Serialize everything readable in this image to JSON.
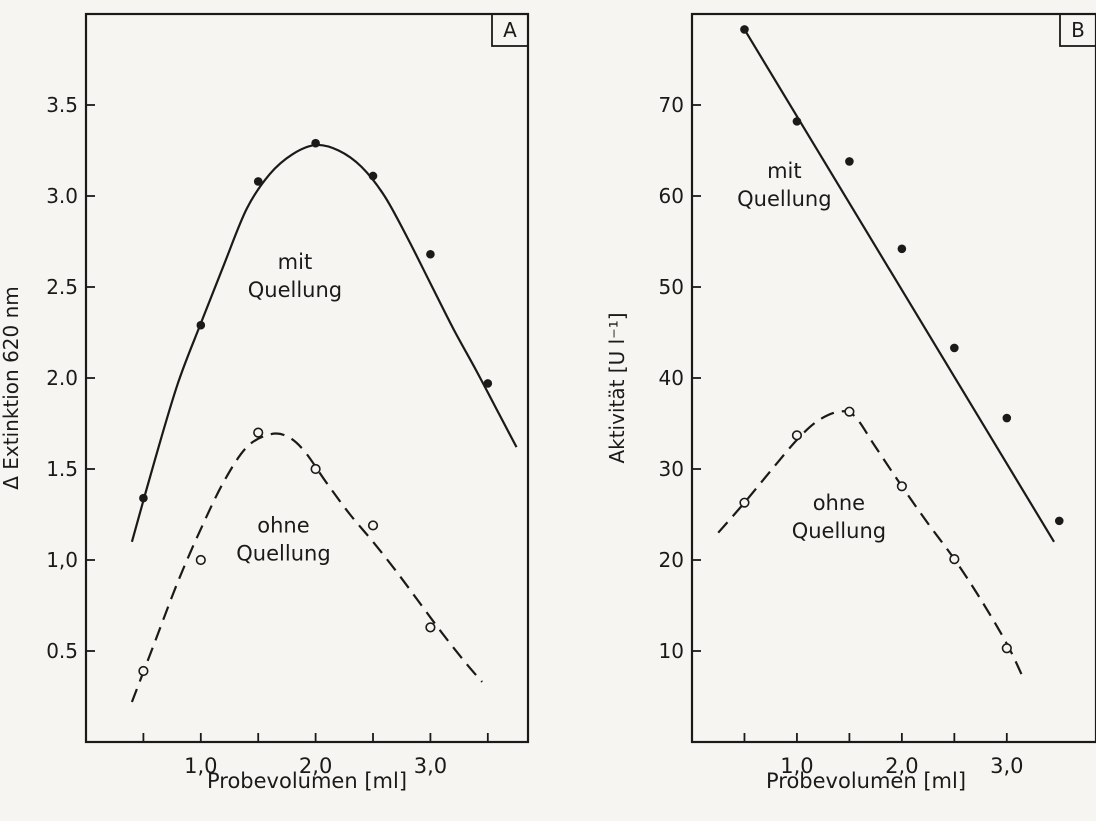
{
  "chart_data": [
    {
      "type": "scatter",
      "panel_label": "A",
      "xlabel": "Probevolumen  [ml]",
      "ylabel": "Δ Extinktion  620 nm",
      "xlim": [
        0.0,
        3.85
      ],
      "ylim": [
        0.0,
        4.0
      ],
      "x_ticks": [
        0.5,
        1.0,
        1.5,
        2.0,
        2.5,
        3.0,
        3.5
      ],
      "x_tick_labels": [
        "",
        "1,0",
        "",
        "2,0",
        "",
        "3,0",
        ""
      ],
      "y_ticks": [
        0.5,
        1.0,
        1.5,
        2.0,
        2.5,
        3.0,
        3.5
      ],
      "y_tick_labels": [
        "0.5",
        "1,0",
        "1.5",
        "2.0",
        "2.5",
        "3.0",
        "3.5"
      ],
      "grid": false,
      "series": [
        {
          "name": "mit Quellung",
          "label_lines": [
            "mit",
            "Quellung"
          ],
          "label_at": [
            1.82,
            2.6
          ],
          "marker": "filled",
          "line": "solid",
          "color": "#1a1a1a",
          "x": [
            0.5,
            1.0,
            1.5,
            2.0,
            2.5,
            3.0,
            3.5
          ],
          "y": [
            1.34,
            2.29,
            3.08,
            3.29,
            3.11,
            2.68,
            1.97
          ],
          "curve": [
            [
              0.4,
              1.1
            ],
            [
              0.6,
              1.55
            ],
            [
              0.8,
              1.97
            ],
            [
              1.0,
              2.3
            ],
            [
              1.2,
              2.62
            ],
            [
              1.4,
              2.93
            ],
            [
              1.6,
              3.12
            ],
            [
              1.8,
              3.23
            ],
            [
              2.0,
              3.28
            ],
            [
              2.2,
              3.25
            ],
            [
              2.4,
              3.16
            ],
            [
              2.6,
              3.0
            ],
            [
              2.8,
              2.77
            ],
            [
              3.0,
              2.52
            ],
            [
              3.2,
              2.27
            ],
            [
              3.4,
              2.04
            ],
            [
              3.6,
              1.8
            ],
            [
              3.75,
              1.62
            ]
          ]
        },
        {
          "name": "ohne Quellung",
          "label_lines": [
            "ohne",
            "Quellung"
          ],
          "label_at": [
            1.72,
            1.15
          ],
          "marker": "open",
          "line": "dashed",
          "color": "#1a1a1a",
          "x": [
            0.5,
            1.0,
            1.5,
            2.0,
            2.5,
            3.0
          ],
          "y": [
            0.39,
            1.0,
            1.7,
            1.5,
            1.19,
            0.63
          ],
          "curve": [
            [
              0.4,
              0.22
            ],
            [
              0.6,
              0.55
            ],
            [
              0.8,
              0.88
            ],
            [
              1.0,
              1.17
            ],
            [
              1.2,
              1.43
            ],
            [
              1.4,
              1.62
            ],
            [
              1.6,
              1.69
            ],
            [
              1.75,
              1.68
            ],
            [
              1.9,
              1.6
            ],
            [
              2.1,
              1.42
            ],
            [
              2.3,
              1.25
            ],
            [
              2.5,
              1.1
            ],
            [
              2.7,
              0.94
            ],
            [
              2.9,
              0.77
            ],
            [
              3.1,
              0.6
            ],
            [
              3.3,
              0.44
            ],
            [
              3.45,
              0.33
            ]
          ]
        }
      ]
    },
    {
      "type": "scatter",
      "panel_label": "B",
      "xlabel": "Probevolumen  [ml]",
      "ylabel": "Aktivität  [U l⁻¹]",
      "xlim": [
        0.0,
        3.85
      ],
      "ylim": [
        0,
        80
      ],
      "x_ticks": [
        0.5,
        1.0,
        1.5,
        2.0,
        2.5,
        3.0
      ],
      "x_tick_labels": [
        "",
        "1,0",
        "",
        "2,0",
        "",
        "3,0"
      ],
      "y_ticks": [
        10,
        20,
        30,
        40,
        50,
        60,
        70
      ],
      "y_tick_labels": [
        "10",
        "20",
        "30",
        "40",
        "50",
        "60",
        "70"
      ],
      "grid": false,
      "series": [
        {
          "name": "mit Quellung",
          "label_lines": [
            "mit",
            "Quellung"
          ],
          "label_at": [
            0.88,
            62
          ],
          "marker": "filled",
          "line": "solid",
          "color": "#1a1a1a",
          "x": [
            0.5,
            1.0,
            1.5,
            2.0,
            2.5,
            3.0,
            3.5
          ],
          "y": [
            78.3,
            68.2,
            63.8,
            54.2,
            43.3,
            35.6,
            24.3
          ],
          "curve": [
            [
              0.5,
              78.3
            ],
            [
              3.45,
              22.0
            ]
          ]
        },
        {
          "name": "ohne Quellung",
          "label_lines": [
            "ohne",
            "Quellung"
          ],
          "label_at": [
            1.4,
            25.5
          ],
          "marker": "open",
          "line": "dashed",
          "color": "#1a1a1a",
          "x": [
            0.5,
            1.0,
            1.5,
            2.0,
            2.5,
            3.0
          ],
          "y": [
            26.3,
            33.7,
            36.3,
            28.1,
            20.1,
            10.3
          ],
          "curve": [
            [
              0.25,
              23.0
            ],
            [
              0.5,
              26.3
            ],
            [
              0.75,
              29.8
            ],
            [
              1.0,
              33.2
            ],
            [
              1.2,
              35.3
            ],
            [
              1.4,
              36.3
            ],
            [
              1.55,
              35.8
            ],
            [
              1.75,
              32.4
            ],
            [
              2.0,
              28.1
            ],
            [
              2.25,
              24.0
            ],
            [
              2.5,
              20.1
            ],
            [
              2.75,
              15.7
            ],
            [
              3.0,
              10.8
            ],
            [
              3.15,
              7.2
            ]
          ]
        }
      ]
    }
  ]
}
